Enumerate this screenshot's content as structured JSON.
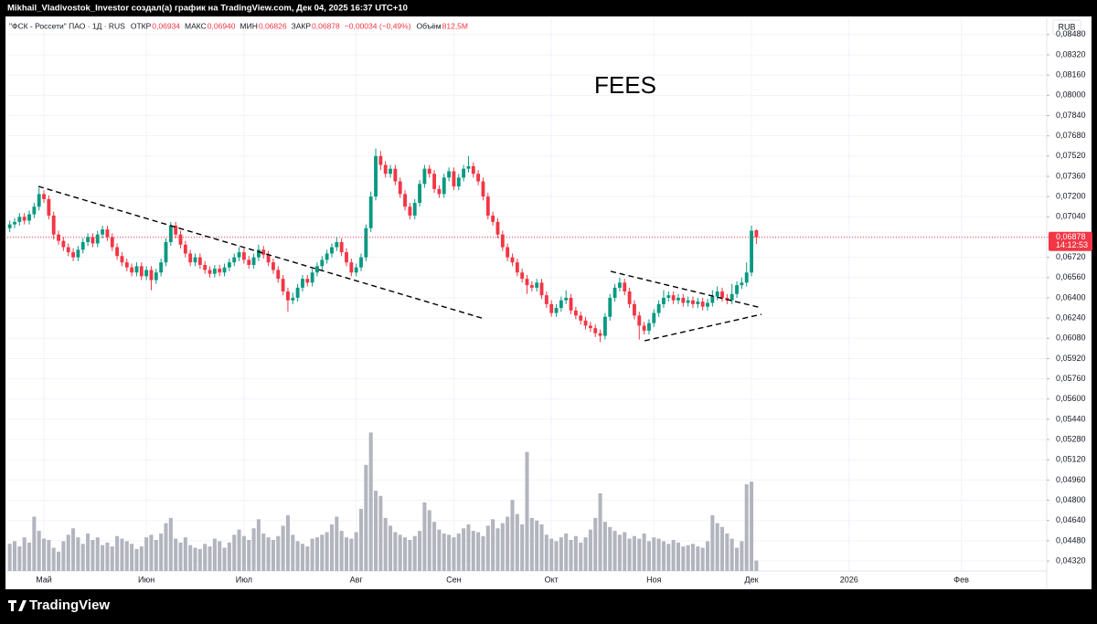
{
  "header": "Mikhail_Vladivostok_Investor создал(а) график на TradingView.com, Дек 04, 2025 16:37 UTC+10",
  "logo": "TradingView",
  "chart_data": {
    "type": "candlestick",
    "annotation": "FEES",
    "currency": "RUB",
    "legend": {
      "symbol": "\"ФСК - Россети\" ПАО · 1Д · RUS",
      "items": [
        {
          "label": "ОТКР",
          "value": "0,06934"
        },
        {
          "label": "МАКС",
          "value": "0,06940"
        },
        {
          "label": "МИН",
          "value": "0,06826"
        },
        {
          "label": "ЗАКР",
          "value": "0,06878"
        }
      ],
      "change": "−0,00034 (−0,49%)",
      "volume_label": "Объём",
      "volume_value": "812,5M"
    },
    "last_price_label": "0,06878",
    "countdown": "14:12:53",
    "up_color": "#089981",
    "down_color": "#f23645",
    "volume_color": "#b2b5be",
    "xlim": [
      -0.5,
      212.5
    ],
    "xticks": [
      {
        "value": 7,
        "label": "Май"
      },
      {
        "value": 28,
        "label": "Июн"
      },
      {
        "value": 48,
        "label": "Июл"
      },
      {
        "value": 71,
        "label": "Авг"
      },
      {
        "value": 91,
        "label": "Сен"
      },
      {
        "value": 111,
        "label": "Окт"
      },
      {
        "value": 132,
        "label": "Ноя"
      },
      {
        "value": 152,
        "label": "Дек"
      },
      {
        "value": 172,
        "label": "2026"
      },
      {
        "value": 195,
        "label": "Фев"
      }
    ],
    "ylim": [
      0.04241,
      0.08609
    ],
    "yticks": [
      {
        "value": 0.0432,
        "label": "0,04320"
      },
      {
        "value": 0.0448,
        "label": "0,04480"
      },
      {
        "value": 0.0464,
        "label": "0,04640"
      },
      {
        "value": 0.048,
        "label": "0,04800"
      },
      {
        "value": 0.0496,
        "label": "0,04960"
      },
      {
        "value": 0.0512,
        "label": "0,05120"
      },
      {
        "value": 0.0528,
        "label": "0,05280"
      },
      {
        "value": 0.0544,
        "label": "0,05440"
      },
      {
        "value": 0.056,
        "label": "0,05600"
      },
      {
        "value": 0.0576,
        "label": "0,05760"
      },
      {
        "value": 0.0592,
        "label": "0,05920"
      },
      {
        "value": 0.0608,
        "label": "0,06080"
      },
      {
        "value": 0.0624,
        "label": "0,06240"
      },
      {
        "value": 0.064,
        "label": "0,06400"
      },
      {
        "value": 0.0656,
        "label": "0,06560"
      },
      {
        "value": 0.0672,
        "label": "0,06720"
      },
      {
        "value": 0.0688,
        "label": "0,06880"
      },
      {
        "value": 0.0704,
        "label": "0,07040"
      },
      {
        "value": 0.072,
        "label": "0,07200"
      },
      {
        "value": 0.0736,
        "label": "0,07360"
      },
      {
        "value": 0.0752,
        "label": "0,07520"
      },
      {
        "value": 0.0768,
        "label": "0,07680"
      },
      {
        "value": 0.0784,
        "label": "0,07840"
      },
      {
        "value": 0.08,
        "label": "0,08000"
      },
      {
        "value": 0.0816,
        "label": "0,08160"
      },
      {
        "value": 0.0832,
        "label": "0,08320"
      },
      {
        "value": 0.0848,
        "label": "0,08480"
      }
    ],
    "volume_lim": [
      0,
      12000
    ],
    "candles": [
      [
        0.0695,
        0.0701,
        0.0692,
        0.0698
      ],
      [
        0.0698,
        0.0703,
        0.0695,
        0.07
      ],
      [
        0.07,
        0.0707,
        0.0697,
        0.0704
      ],
      [
        0.0704,
        0.0707,
        0.0698,
        0.0701
      ],
      [
        0.0701,
        0.0709,
        0.0698,
        0.0706
      ],
      [
        0.0706,
        0.0715,
        0.0703,
        0.0712
      ],
      [
        0.0712,
        0.0727,
        0.0709,
        0.0722
      ],
      [
        0.0722,
        0.0725,
        0.0715,
        0.0718
      ],
      [
        0.0718,
        0.0721,
        0.0702,
        0.0705
      ],
      [
        0.0705,
        0.0708,
        0.0686,
        0.069
      ],
      [
        0.069,
        0.0693,
        0.0682,
        0.0685
      ],
      [
        0.0685,
        0.0688,
        0.0677,
        0.068
      ],
      [
        0.068,
        0.0683,
        0.0673,
        0.0676
      ],
      [
        0.0676,
        0.0679,
        0.0669,
        0.0672
      ],
      [
        0.0672,
        0.0681,
        0.0669,
        0.0678
      ],
      [
        0.0678,
        0.0687,
        0.0675,
        0.0684
      ],
      [
        0.0684,
        0.0691,
        0.0681,
        0.0688
      ],
      [
        0.0688,
        0.0691,
        0.068,
        0.0683
      ],
      [
        0.0683,
        0.0693,
        0.068,
        0.069
      ],
      [
        0.069,
        0.0697,
        0.0687,
        0.0694
      ],
      [
        0.0694,
        0.0697,
        0.0685,
        0.0688
      ],
      [
        0.0688,
        0.0691,
        0.0677,
        0.068
      ],
      [
        0.068,
        0.0683,
        0.067,
        0.0673
      ],
      [
        0.0673,
        0.0676,
        0.0665,
        0.0668
      ],
      [
        0.0668,
        0.0671,
        0.0661,
        0.0664
      ],
      [
        0.0664,
        0.0667,
        0.0657,
        0.066
      ],
      [
        0.066,
        0.0668,
        0.0657,
        0.0665
      ],
      [
        0.0665,
        0.0668,
        0.0654,
        0.0657
      ],
      [
        0.0657,
        0.0665,
        0.0654,
        0.0662
      ],
      [
        0.0662,
        0.0665,
        0.0646,
        0.0654
      ],
      [
        0.0654,
        0.0663,
        0.0651,
        0.066
      ],
      [
        0.066,
        0.0671,
        0.0657,
        0.0668
      ],
      [
        0.0668,
        0.0687,
        0.0665,
        0.0684
      ],
      [
        0.0684,
        0.07,
        0.0681,
        0.0697
      ],
      [
        0.0697,
        0.07,
        0.0687,
        0.069
      ],
      [
        0.069,
        0.0693,
        0.0679,
        0.0682
      ],
      [
        0.0682,
        0.0685,
        0.0672,
        0.0675
      ],
      [
        0.0675,
        0.0678,
        0.0665,
        0.0668
      ],
      [
        0.0668,
        0.0675,
        0.0665,
        0.0672
      ],
      [
        0.0672,
        0.0675,
        0.0663,
        0.0666
      ],
      [
        0.0666,
        0.0669,
        0.0659,
        0.0662
      ],
      [
        0.0662,
        0.0665,
        0.0656,
        0.0659
      ],
      [
        0.0659,
        0.0666,
        0.0656,
        0.0663
      ],
      [
        0.0663,
        0.0666,
        0.0657,
        0.066
      ],
      [
        0.066,
        0.0667,
        0.0657,
        0.0664
      ],
      [
        0.0664,
        0.0671,
        0.0661,
        0.0668
      ],
      [
        0.0668,
        0.0675,
        0.0665,
        0.0672
      ],
      [
        0.0672,
        0.068,
        0.0669,
        0.0676
      ],
      [
        0.0676,
        0.0679,
        0.0667,
        0.067
      ],
      [
        0.067,
        0.0673,
        0.0663,
        0.0666
      ],
      [
        0.0666,
        0.0675,
        0.0663,
        0.0672
      ],
      [
        0.0672,
        0.0682,
        0.0669,
        0.0678
      ],
      [
        0.0678,
        0.0681,
        0.0671,
        0.0674
      ],
      [
        0.0674,
        0.0677,
        0.0665,
        0.0668
      ],
      [
        0.0668,
        0.0671,
        0.0659,
        0.0662
      ],
      [
        0.0662,
        0.0665,
        0.0652,
        0.0655
      ],
      [
        0.0655,
        0.0658,
        0.0642,
        0.0645
      ],
      [
        0.0645,
        0.0648,
        0.0629,
        0.0638
      ],
      [
        0.0638,
        0.0644,
        0.0635,
        0.064
      ],
      [
        0.064,
        0.0651,
        0.0637,
        0.0648
      ],
      [
        0.0648,
        0.0658,
        0.0645,
        0.0655
      ],
      [
        0.0655,
        0.0658,
        0.0649,
        0.0652
      ],
      [
        0.0652,
        0.0663,
        0.0649,
        0.066
      ],
      [
        0.066,
        0.0668,
        0.0657,
        0.0665
      ],
      [
        0.0665,
        0.0673,
        0.0662,
        0.067
      ],
      [
        0.067,
        0.0678,
        0.0667,
        0.0675
      ],
      [
        0.0675,
        0.0683,
        0.0672,
        0.068
      ],
      [
        0.068,
        0.0688,
        0.0677,
        0.0684
      ],
      [
        0.0684,
        0.0687,
        0.0673,
        0.0676
      ],
      [
        0.0676,
        0.0679,
        0.0665,
        0.0668
      ],
      [
        0.0668,
        0.0671,
        0.0657,
        0.066
      ],
      [
        0.066,
        0.0667,
        0.0657,
        0.0664
      ],
      [
        0.0664,
        0.0675,
        0.0661,
        0.0672
      ],
      [
        0.0672,
        0.0698,
        0.0669,
        0.0695
      ],
      [
        0.0695,
        0.0724,
        0.0692,
        0.072
      ],
      [
        0.072,
        0.0758,
        0.0717,
        0.0752
      ],
      [
        0.0752,
        0.0756,
        0.0741,
        0.0745
      ],
      [
        0.0745,
        0.0748,
        0.0735,
        0.0738
      ],
      [
        0.0738,
        0.0745,
        0.0735,
        0.0742
      ],
      [
        0.0742,
        0.0745,
        0.0729,
        0.0732
      ],
      [
        0.0732,
        0.0735,
        0.0719,
        0.0722
      ],
      [
        0.0722,
        0.0725,
        0.0709,
        0.0712
      ],
      [
        0.0712,
        0.0715,
        0.0702,
        0.0705
      ],
      [
        0.0705,
        0.0718,
        0.0702,
        0.0715
      ],
      [
        0.0715,
        0.0733,
        0.0712,
        0.073
      ],
      [
        0.073,
        0.0745,
        0.0727,
        0.0742
      ],
      [
        0.0742,
        0.0745,
        0.0735,
        0.0738
      ],
      [
        0.0738,
        0.0741,
        0.0723,
        0.0726
      ],
      [
        0.0726,
        0.0729,
        0.0719,
        0.0722
      ],
      [
        0.0722,
        0.0738,
        0.0719,
        0.0735
      ],
      [
        0.0735,
        0.0743,
        0.0732,
        0.074
      ],
      [
        0.074,
        0.0743,
        0.0725,
        0.0728
      ],
      [
        0.0728,
        0.0738,
        0.0725,
        0.0735
      ],
      [
        0.0735,
        0.0745,
        0.0732,
        0.0742
      ],
      [
        0.0742,
        0.0752,
        0.0739,
        0.0744
      ],
      [
        0.0744,
        0.0747,
        0.0735,
        0.0738
      ],
      [
        0.0738,
        0.0741,
        0.0729,
        0.0732
      ],
      [
        0.0732,
        0.0735,
        0.0717,
        0.072
      ],
      [
        0.072,
        0.0723,
        0.0702,
        0.0705
      ],
      [
        0.0705,
        0.0708,
        0.0697,
        0.07
      ],
      [
        0.07,
        0.0703,
        0.0687,
        0.069
      ],
      [
        0.069,
        0.0693,
        0.0677,
        0.068
      ],
      [
        0.068,
        0.0683,
        0.0669,
        0.0672
      ],
      [
        0.0672,
        0.0675,
        0.0665,
        0.0668
      ],
      [
        0.0668,
        0.0671,
        0.0657,
        0.066
      ],
      [
        0.066,
        0.0663,
        0.0652,
        0.0655
      ],
      [
        0.0655,
        0.0658,
        0.0643,
        0.065
      ],
      [
        0.065,
        0.0653,
        0.0645,
        0.0648
      ],
      [
        0.0648,
        0.0655,
        0.0645,
        0.0652
      ],
      [
        0.0652,
        0.0655,
        0.0639,
        0.0642
      ],
      [
        0.0642,
        0.0645,
        0.0632,
        0.0635
      ],
      [
        0.0635,
        0.0638,
        0.0625,
        0.0628
      ],
      [
        0.0628,
        0.0635,
        0.0625,
        0.0632
      ],
      [
        0.0632,
        0.0641,
        0.0629,
        0.0638
      ],
      [
        0.0638,
        0.0646,
        0.0635,
        0.064
      ],
      [
        0.064,
        0.0643,
        0.0627,
        0.063
      ],
      [
        0.063,
        0.0633,
        0.0623,
        0.0626
      ],
      [
        0.0626,
        0.0629,
        0.0619,
        0.0622
      ],
      [
        0.0622,
        0.0625,
        0.0615,
        0.0618
      ],
      [
        0.0618,
        0.0621,
        0.0613,
        0.0616
      ],
      [
        0.0616,
        0.0619,
        0.0609,
        0.0612
      ],
      [
        0.0612,
        0.0615,
        0.0605,
        0.061
      ],
      [
        0.061,
        0.0628,
        0.0607,
        0.0625
      ],
      [
        0.0625,
        0.0643,
        0.0622,
        0.064
      ],
      [
        0.064,
        0.0651,
        0.0637,
        0.0648
      ],
      [
        0.0648,
        0.0656,
        0.0645,
        0.0652
      ],
      [
        0.0652,
        0.0655,
        0.0642,
        0.0645
      ],
      [
        0.0645,
        0.0648,
        0.0632,
        0.0635
      ],
      [
        0.0635,
        0.0638,
        0.0623,
        0.0626
      ],
      [
        0.0626,
        0.0629,
        0.0607,
        0.0618
      ],
      [
        0.0618,
        0.0621,
        0.0611,
        0.0614
      ],
      [
        0.0614,
        0.0623,
        0.0611,
        0.062
      ],
      [
        0.062,
        0.0631,
        0.0617,
        0.0628
      ],
      [
        0.0628,
        0.0638,
        0.0625,
        0.0635
      ],
      [
        0.0635,
        0.0646,
        0.0632,
        0.064
      ],
      [
        0.064,
        0.0645,
        0.0637,
        0.0642
      ],
      [
        0.0642,
        0.0645,
        0.0635,
        0.0638
      ],
      [
        0.0638,
        0.0643,
        0.0635,
        0.064
      ],
      [
        0.064,
        0.0643,
        0.0633,
        0.0636
      ],
      [
        0.0636,
        0.0641,
        0.0633,
        0.0638
      ],
      [
        0.0638,
        0.0641,
        0.0632,
        0.0635
      ],
      [
        0.0635,
        0.064,
        0.0632,
        0.0637
      ],
      [
        0.0637,
        0.064,
        0.063,
        0.0633
      ],
      [
        0.0633,
        0.0639,
        0.063,
        0.0636
      ],
      [
        0.0636,
        0.0646,
        0.0633,
        0.0641
      ],
      [
        0.0641,
        0.0649,
        0.0638,
        0.0645
      ],
      [
        0.0645,
        0.0648,
        0.0637,
        0.064
      ],
      [
        0.064,
        0.0643,
        0.0635,
        0.0638
      ],
      [
        0.0638,
        0.0651,
        0.0635,
        0.0643
      ],
      [
        0.0643,
        0.0653,
        0.064,
        0.065
      ],
      [
        0.065,
        0.0656,
        0.0647,
        0.0652
      ],
      [
        0.0652,
        0.0668,
        0.0649,
        0.066
      ],
      [
        0.066,
        0.0697,
        0.0657,
        0.0693
      ],
      [
        0.06934,
        0.0694,
        0.06826,
        0.06878
      ]
    ],
    "volume": [
      2100,
      2300,
      1900,
      2600,
      2200,
      4200,
      3100,
      2500,
      2400,
      1800,
      1500,
      2300,
      2800,
      3300,
      2600,
      2100,
      2900,
      2400,
      2600,
      2000,
      2200,
      1900,
      2700,
      2500,
      2300,
      2100,
      1700,
      1900,
      2600,
      2800,
      2400,
      2900,
      3700,
      4100,
      2500,
      2200,
      2600,
      2000,
      1800,
      1700,
      2100,
      1900,
      2500,
      2300,
      1800,
      2200,
      2800,
      3200,
      2700,
      2400,
      3300,
      4000,
      2900,
      2600,
      2400,
      2700,
      3500,
      4300,
      2800,
      2300,
      2100,
      1900,
      2500,
      2600,
      2800,
      3000,
      3600,
      4200,
      3100,
      2600,
      2500,
      3000,
      4800,
      8200,
      10700,
      6200,
      5800,
      4100,
      3500,
      3000,
      2800,
      2600,
      2400,
      2700,
      3100,
      5300,
      4700,
      3800,
      3200,
      2900,
      2800,
      2600,
      2900,
      3300,
      3600,
      3100,
      3000,
      2700,
      3500,
      4000,
      3300,
      3700,
      4200,
      5500,
      4400,
      3600,
      9200,
      4100,
      3900,
      3600,
      2800,
      2500,
      2300,
      2600,
      2900,
      2400,
      2700,
      2200,
      2600,
      3200,
      4100,
      6000,
      3800,
      3400,
      3100,
      2800,
      3000,
      2500,
      2700,
      2500,
      2900,
      2300,
      2600,
      2500,
      2300,
      2100,
      2400,
      2200,
      1900,
      2000,
      2100,
      1900,
      1800,
      2300,
      4300,
      3700,
      3400,
      2900,
      2500,
      1800,
      2300,
      6700,
      6900,
      812.5
    ]
  }
}
